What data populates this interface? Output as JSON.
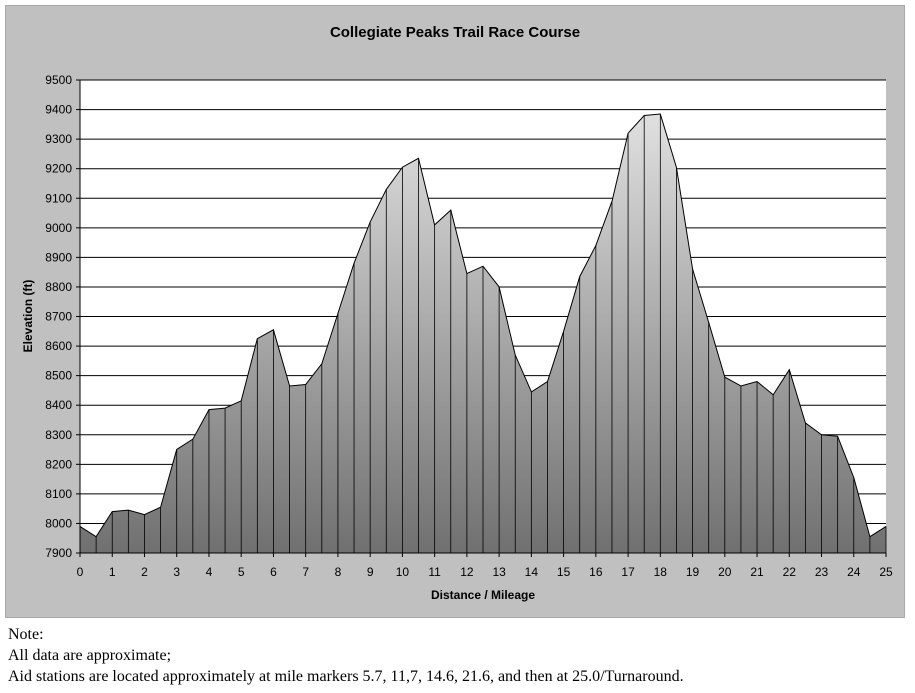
{
  "chart_data": {
    "type": "area",
    "title": "Collegiate Peaks Trail Race Course",
    "xlabel": "Distance / Mileage",
    "ylabel": "Elevation (ft)",
    "xlim": [
      0,
      25
    ],
    "ylim": [
      7900,
      9500
    ],
    "x_ticks": [
      0,
      1,
      2,
      3,
      4,
      5,
      6,
      7,
      8,
      9,
      10,
      11,
      12,
      13,
      14,
      15,
      16,
      17,
      18,
      19,
      20,
      21,
      22,
      23,
      24,
      25
    ],
    "y_ticks": [
      7900,
      8000,
      8100,
      8200,
      8300,
      8400,
      8500,
      8600,
      8700,
      8800,
      8900,
      9000,
      9100,
      9200,
      9300,
      9400,
      9500
    ],
    "grid": true,
    "legend": "none",
    "series": [
      {
        "x": [
          0,
          0.5,
          1,
          1.5,
          2,
          2.5,
          3,
          3.5,
          4,
          4.5,
          5,
          5.5,
          6,
          6.5,
          7,
          7.5,
          8,
          8.5,
          9,
          9.5,
          10,
          10.5,
          11,
          11.5,
          12,
          12.5,
          13,
          13.5,
          14,
          14.5,
          15,
          15.5,
          16,
          16.5,
          17,
          17.5,
          18,
          18.5,
          19,
          19.5,
          20,
          20.5,
          21,
          21.5,
          22,
          22.5,
          23,
          23.5,
          24,
          24.5,
          25
        ],
        "y": [
          7990,
          7955,
          8040,
          8045,
          8030,
          8055,
          8250,
          8285,
          8385,
          8390,
          8415,
          8625,
          8655,
          8465,
          8470,
          8540,
          8710,
          8880,
          9020,
          9130,
          9205,
          9235,
          9010,
          9060,
          8845,
          8870,
          8800,
          8570,
          8445,
          8480,
          8650,
          8835,
          8940,
          9090,
          9320,
          9380,
          9385,
          9205,
          8860,
          8680,
          8495,
          8465,
          8480,
          8435,
          8520,
          8340,
          8300,
          8295,
          8155,
          7955,
          7990
        ]
      }
    ],
    "colors": {
      "background": "#c0c0c0",
      "plot": "#ffffff",
      "fill_top": "#e0e0e0",
      "fill_bottom": "#707070",
      "outline": "#000000"
    }
  },
  "notes": {
    "line1": "Note:",
    "line2": "All data are approximate;",
    "line3": "Aid stations are located approximately at mile markers 5.7, 11,7, 14.6, 21.6, and then at 25.0/Turnaround."
  }
}
